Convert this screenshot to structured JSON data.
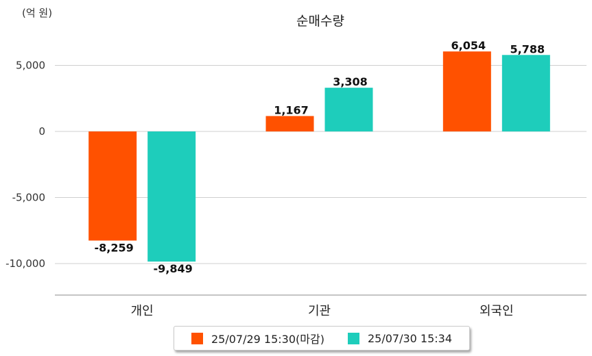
{
  "unit_label": "(억 원)",
  "chart_data": {
    "type": "bar",
    "title": "순매수량",
    "categories": [
      "개인",
      "기관",
      "외국인"
    ],
    "series": [
      {
        "name": "25/07/29 15:30(마감)",
        "color": "#ff5100",
        "values": [
          -8259,
          1167,
          6054
        ]
      },
      {
        "name": "25/07/30 15:34",
        "color": "#1ecdbb",
        "values": [
          -9849,
          3308,
          5788
        ]
      }
    ],
    "yticks": [
      5000,
      0,
      -5000,
      -10000
    ],
    "ytick_labels": [
      "5,000",
      "0",
      "-5,000",
      "-10,000"
    ],
    "ylim": [
      -12500,
      7500
    ],
    "data_labels": [
      [
        "-8,259",
        "1,167",
        "6,054"
      ],
      [
        "-9,849",
        "3,308",
        "5,788"
      ]
    ],
    "grid": true,
    "legend_position": "bottom"
  }
}
